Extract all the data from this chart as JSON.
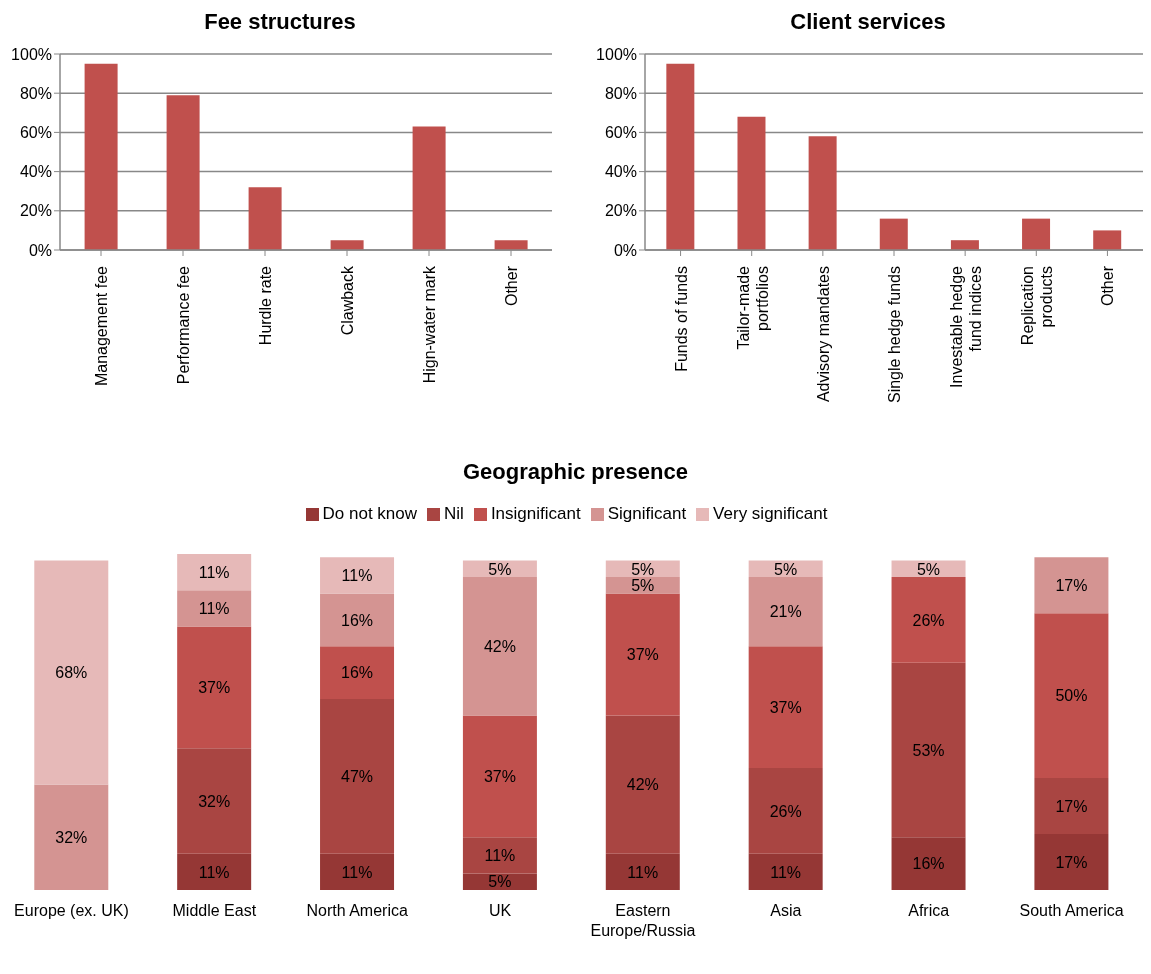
{
  "chart_data": [
    {
      "type": "bar",
      "title": "Fee structures",
      "categories": [
        "Management fee",
        "Performance fee",
        "Hurdle rate",
        "Clawback",
        "Hign-water mark",
        "Other"
      ],
      "values": [
        95,
        79,
        32,
        5,
        63,
        5
      ],
      "color": "#c0504d",
      "ylim": [
        0,
        100
      ],
      "yticks": [
        {
          "value": 0,
          "label": "0%"
        },
        {
          "value": 20,
          "label": "20%"
        },
        {
          "value": 40,
          "label": "40%"
        },
        {
          "value": 60,
          "label": "60%"
        },
        {
          "value": 80,
          "label": "80%"
        },
        {
          "value": 100,
          "label": "100%"
        }
      ],
      "grid": "y"
    },
    {
      "type": "bar",
      "title": "Client services",
      "categories": [
        "Funds of funds",
        "Tailor-made portfolios",
        "Advisory mandates",
        "Single hedge funds",
        "Investable hedge fund indices",
        "Replication products",
        "Other"
      ],
      "values": [
        95,
        68,
        58,
        16,
        5,
        16,
        10
      ],
      "color": "#c0504d",
      "ylim": [
        0,
        100
      ],
      "yticks": [
        {
          "value": 0,
          "label": "0%"
        },
        {
          "value": 20,
          "label": "20%"
        },
        {
          "value": 40,
          "label": "40%"
        },
        {
          "value": 60,
          "label": "60%"
        },
        {
          "value": 80,
          "label": "80%"
        },
        {
          "value": 100,
          "label": "100%"
        }
      ],
      "grid": "y"
    },
    {
      "type": "bar",
      "title": "Geographic presence",
      "stacked": true,
      "legend": "top",
      "categories": [
        "Europe (ex. UK)",
        "Middle East",
        "North America",
        "UK",
        "Eastern Europe/Russia",
        "Asia",
        "Africa",
        "South America"
      ],
      "series": [
        {
          "name": "Do not know",
          "color": "#953735",
          "values": [
            null,
            11,
            11,
            5,
            11,
            11,
            16,
            17
          ],
          "value_labels": [
            null,
            "11%",
            "11%",
            "5%",
            "11%",
            "11%",
            "16%",
            "17%"
          ]
        },
        {
          "name": "Nil",
          "color": "#a94542",
          "values": [
            null,
            32,
            47,
            11,
            42,
            26,
            53,
            17
          ],
          "value_labels": [
            null,
            "32%",
            "47%",
            "11%",
            "42%",
            "26%",
            "53%",
            "17%"
          ]
        },
        {
          "name": "Insignificant",
          "color": "#c0504d",
          "values": [
            null,
            37,
            16,
            37,
            37,
            37,
            26,
            50
          ],
          "value_labels": [
            null,
            "37%",
            "16%",
            "37%",
            "37%",
            "37%",
            "26%",
            "50%"
          ]
        },
        {
          "name": "Significant",
          "color": "#d49492",
          "values": [
            32,
            11,
            16,
            42,
            5,
            21,
            null,
            17
          ],
          "value_labels": [
            "32%",
            "11%",
            "16%",
            "42%",
            "5%",
            "21%",
            null,
            "17%"
          ]
        },
        {
          "name": "Very significant",
          "color": "#e6b9b8",
          "values": [
            68,
            11,
            11,
            5,
            5,
            5,
            5,
            null
          ],
          "value_labels": [
            "68%",
            "11%",
            "11%",
            "5%",
            "5%",
            "5%",
            "5%",
            null
          ]
        }
      ]
    }
  ]
}
